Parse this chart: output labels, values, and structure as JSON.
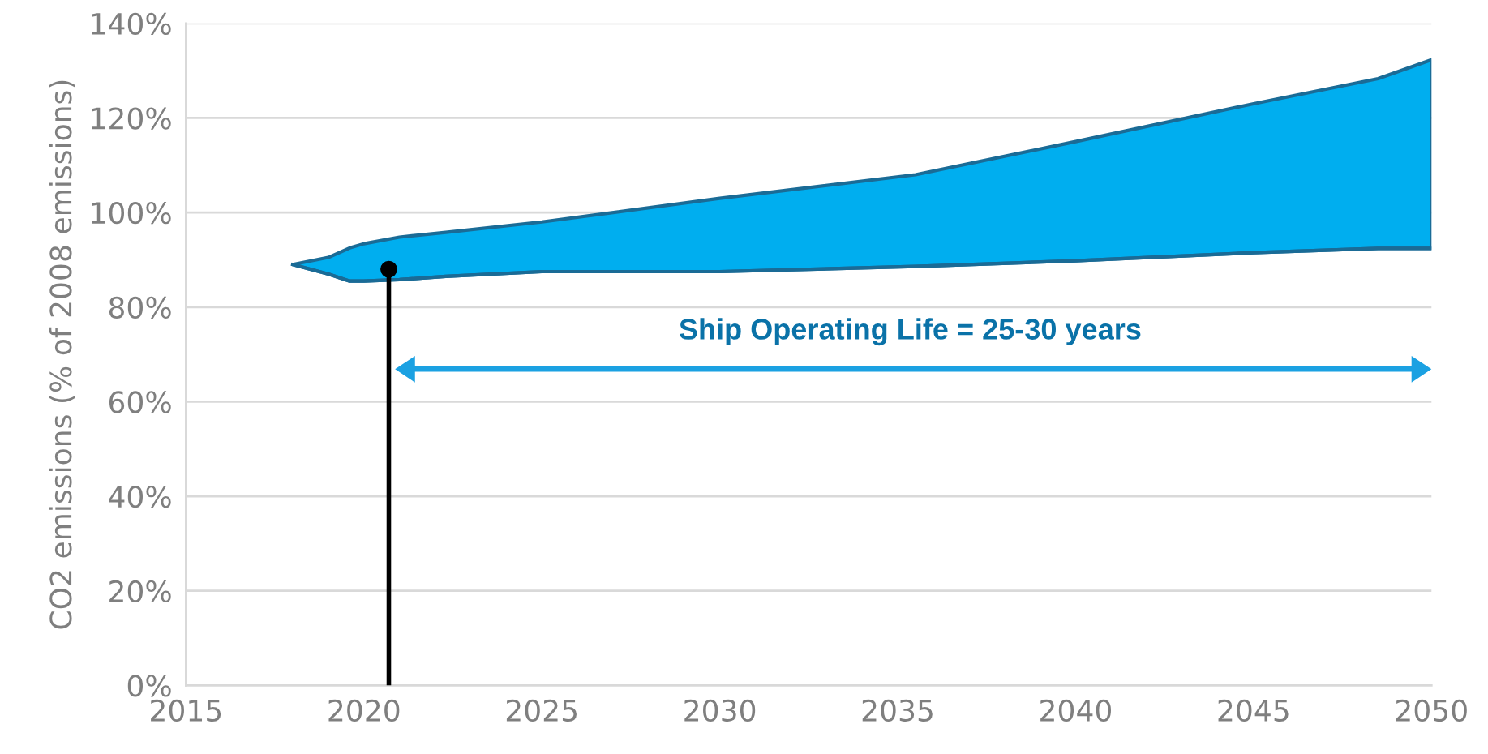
{
  "chart_data": {
    "type": "area",
    "ylabel": "CO2 emissions (% of 2008 emissions)",
    "series": [
      {
        "color": "#00aeef",
        "x": [
          2018,
          2019,
          2019.6,
          2020,
          2021,
          2022.3,
          2025,
          2030,
          2035.5,
          2040,
          2045,
          2048.5,
          2050
        ],
        "values": [
          89,
          90.5,
          92.5,
          93.4,
          94.8,
          95.8,
          98,
          103,
          108,
          115,
          123,
          128.3,
          132.3
        ]
      },
      {
        "type": "line",
        "color": "#1a6b96",
        "x": [
          2018,
          2019,
          2019.6,
          2020,
          2021,
          2022.3,
          2025,
          2030,
          2035.5,
          2040,
          2045,
          2048.5,
          2050
        ],
        "values": [
          89,
          87,
          85.5,
          85.5,
          85.8,
          86.5,
          87.5,
          87.5,
          88.6,
          89.8,
          91.5,
          92.4,
          92.4
        ]
      },
      {
        "type": "line",
        "color": "#000000",
        "marker": "circle",
        "x": [
          2020.7,
          2020.7
        ],
        "values": [
          0,
          88
        ]
      }
    ],
    "annotations": [
      "Ship Operating Life = 25-30 years"
    ],
    "xlim": [
      2015,
      2050
    ],
    "xticks": [
      2015,
      2020,
      2025,
      2030,
      2035,
      2040,
      2045,
      2050
    ],
    "ylim": [
      0,
      140
    ],
    "yticks": [
      {
        "value": 0,
        "label": "0%"
      },
      {
        "value": 20,
        "label": "20%"
      },
      {
        "value": 40,
        "label": "40%"
      },
      {
        "value": 60,
        "label": "60%"
      },
      {
        "value": 80,
        "label": "80%"
      },
      {
        "value": 100,
        "label": "100%"
      },
      {
        "value": 120,
        "label": "120%"
      },
      {
        "value": 140,
        "label": "140%"
      }
    ],
    "grid": "y"
  }
}
